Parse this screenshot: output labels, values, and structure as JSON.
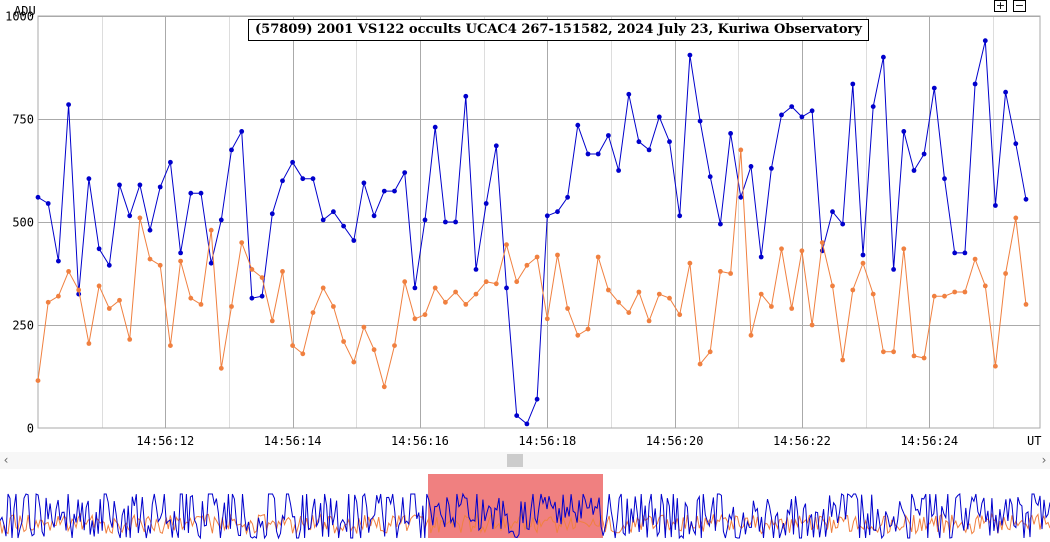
{
  "title": "(57809) 2001 VS122 occults UCAC4 267-151582, 2024 July 23, Kuriwa Observatory",
  "y_axis_unit": "ADU",
  "x_axis_unit": "UT",
  "zoom_in_label": "+",
  "zoom_out_label": "−",
  "scroll_left_glyph": "‹",
  "scroll_right_glyph": "›",
  "colors": {
    "target": "#0000cc",
    "comparison": "#f08040",
    "overview_highlight": "#f08080",
    "grid": "#aaaaaa"
  },
  "chart_data": {
    "type": "line",
    "title": "(57809) 2001 VS122 occults UCAC4 267-151582, 2024 July 23, Kuriwa Observatory",
    "xlabel": "UT",
    "ylabel": "ADU",
    "ylim": [
      0,
      1000
    ],
    "y_ticks": [
      0,
      250,
      500,
      750,
      1000
    ],
    "x_ticks": [
      "14:56:12",
      "14:56:14",
      "14:56:16",
      "14:56:18",
      "14:56:20",
      "14:56:22",
      "14:56:24"
    ],
    "x_tick_seconds": [
      12,
      14,
      16,
      18,
      20,
      22,
      24
    ],
    "xlim_seconds": [
      10.0,
      25.74
    ],
    "x_start_seconds": 10.0,
    "x_step_seconds": 0.16,
    "grid": true,
    "series": [
      {
        "color": "#0000cc",
        "values": [
          560,
          545,
          405,
          785,
          325,
          605,
          435,
          395,
          590,
          515,
          590,
          480,
          585,
          645,
          425,
          570,
          570,
          400,
          505,
          675,
          720,
          315,
          320,
          520,
          600,
          645,
          605,
          605,
          505,
          525,
          490,
          455,
          595,
          515,
          575,
          575,
          620,
          340,
          505,
          730,
          500,
          500,
          805,
          385,
          545,
          685,
          340,
          30,
          10,
          70,
          515,
          525,
          560,
          735,
          665,
          665,
          710,
          625,
          810,
          695,
          675,
          755,
          695,
          515,
          905,
          745,
          610,
          495,
          715,
          560,
          635,
          415,
          630,
          760,
          780,
          755,
          770,
          430,
          525,
          495,
          835,
          420,
          780,
          900,
          385,
          720,
          625,
          665,
          825,
          605,
          425,
          425,
          835,
          940,
          540,
          815,
          690,
          555
        ]
      },
      {
        "color": "#f08040",
        "values": [
          115,
          305,
          320,
          380,
          335,
          205,
          345,
          290,
          310,
          215,
          510,
          410,
          395,
          200,
          405,
          315,
          300,
          480,
          145,
          295,
          450,
          385,
          365,
          260,
          380,
          200,
          180,
          280,
          340,
          295,
          210,
          160,
          245,
          190,
          100,
          200,
          355,
          265,
          275,
          340,
          305,
          330,
          300,
          325,
          355,
          350,
          445,
          355,
          395,
          415,
          265,
          420,
          290,
          225,
          240,
          415,
          335,
          305,
          280,
          330,
          260,
          325,
          315,
          275,
          400,
          155,
          185,
          380,
          375,
          675,
          225,
          325,
          295,
          435,
          290,
          430,
          250,
          450,
          345,
          165,
          335,
          400,
          325,
          185,
          185,
          435,
          175,
          170,
          320,
          320,
          330,
          330,
          410,
          345,
          150,
          375,
          510,
          300
        ]
      }
    ]
  }
}
